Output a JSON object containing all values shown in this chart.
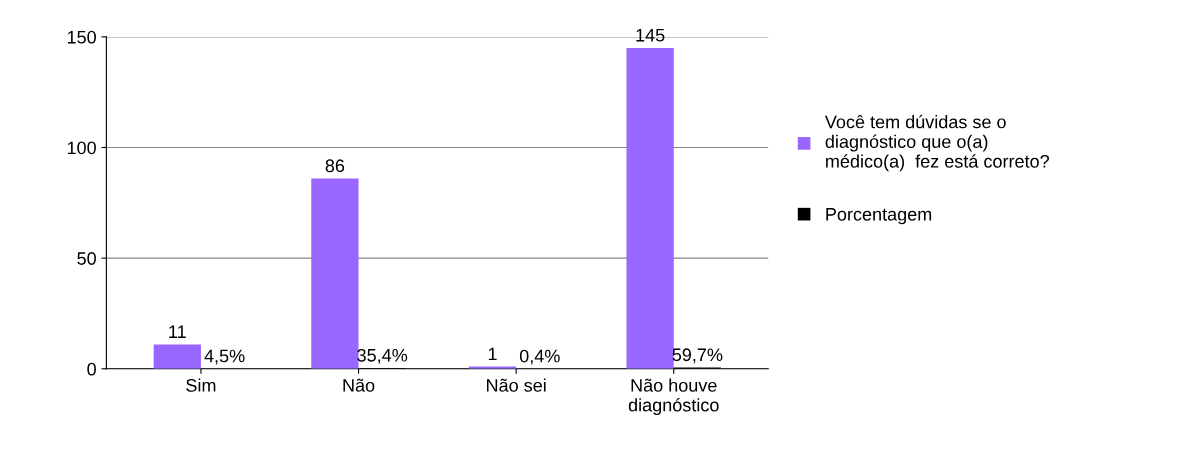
{
  "chart_data": {
    "type": "bar",
    "categories": [
      "Sim",
      "Não",
      "Não sei",
      "Não houve\ndiagnóstico"
    ],
    "series": [
      {
        "name": "Você tem dúvidas se o\ndiagnóstico que o(a)\nmédico(a)  fez está correto?",
        "color": "#9966ff",
        "values": [
          11,
          86,
          1,
          145
        ],
        "value_labels": [
          "11",
          "86",
          "1",
          "145"
        ]
      },
      {
        "name": "Porcentagem",
        "color": "#000000",
        "values": [
          0.045,
          0.354,
          0.004,
          0.597
        ],
        "value_labels": [
          "4,5%",
          "35,4%",
          "0,4%",
          "59,7%"
        ]
      }
    ],
    "ylim": [
      0,
      150
    ],
    "yticks": [
      0,
      50,
      100,
      150
    ],
    "grid": "y",
    "legend": "right"
  }
}
